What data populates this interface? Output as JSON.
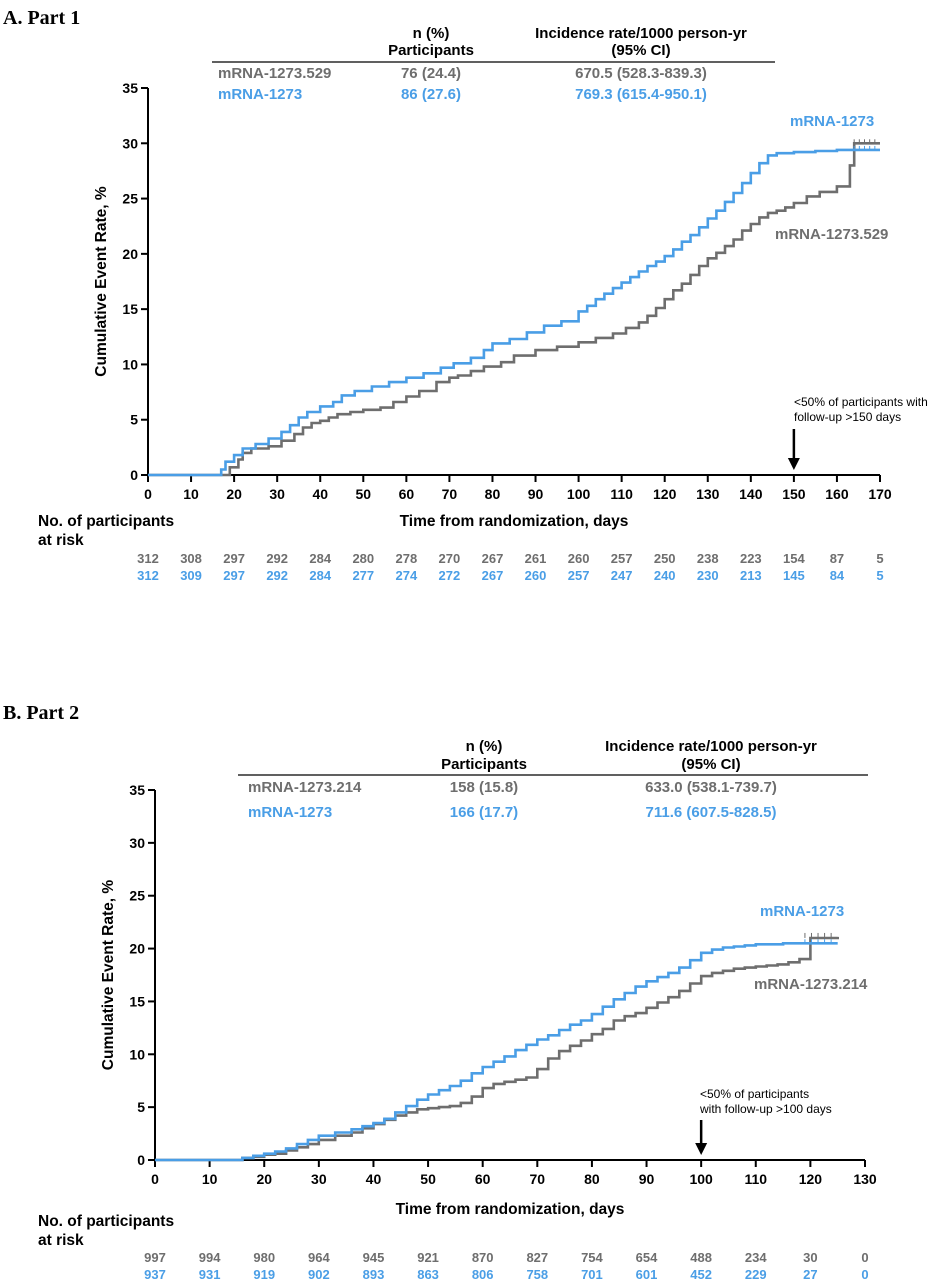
{
  "colors": {
    "gray": "#6e6e6e",
    "blue": "#4a9ee6",
    "axis": "#000000"
  },
  "chart_data": [
    {
      "type": "line",
      "panel_title": "A. Part 1",
      "xlabel": "Time from randomization, days",
      "ylabel": "Cumulative Event Rate, %",
      "xlim": [
        0,
        170
      ],
      "ylim": [
        0,
        35
      ],
      "x_ticks": [
        "0",
        "10",
        "20",
        "30",
        "40",
        "50",
        "60",
        "70",
        "80",
        "90",
        "100",
        "110",
        "120",
        "130",
        "140",
        "150",
        "160",
        "170"
      ],
      "y_ticks": [
        "0",
        "5",
        "10",
        "15",
        "20",
        "25",
        "30",
        "35"
      ],
      "table": {
        "header_n_line1": "n (%)",
        "header_n_line2": "Participants",
        "header_ir_line1": "Incidence rate/1000 person-yr",
        "header_ir_line2": "(95% CI)",
        "rows": [
          {
            "name": "mRNA-1273.529",
            "n": "76 (24.4)",
            "ir": "670.5 (528.3-839.3)",
            "color": "#6e6e6e"
          },
          {
            "name": "mRNA-1273",
            "n": "86 (27.6)",
            "ir": "769.3 (615.4-950.1)",
            "color": "#4a9ee6"
          }
        ]
      },
      "annotation": {
        "line1": "<50% of participants with",
        "line2": "follow-up >150 days",
        "x": 150
      },
      "series": [
        {
          "name": "mRNA-1273.529",
          "color": "#6e6e6e",
          "end_label": "mRNA-1273.529",
          "x": [
            0,
            18,
            19,
            21,
            22,
            24,
            28,
            31,
            34,
            36,
            38,
            40,
            42,
            44,
            47,
            50,
            54,
            57,
            60,
            63,
            67,
            70,
            72,
            75,
            78,
            82,
            85,
            90,
            95,
            100,
            104,
            108,
            111,
            114,
            116,
            118,
            120,
            122,
            124,
            126,
            128,
            130,
            132,
            134,
            136,
            138,
            140,
            142,
            144,
            146,
            148,
            150,
            153,
            156,
            160,
            163,
            164,
            170
          ],
          "y": [
            0,
            0,
            0.7,
            1.4,
            2.0,
            2.4,
            2.6,
            3.1,
            3.7,
            4.3,
            4.7,
            4.9,
            5.2,
            5.5,
            5.7,
            5.9,
            6.1,
            6.6,
            7.1,
            7.6,
            8.4,
            8.8,
            9.0,
            9.4,
            9.8,
            10.2,
            10.8,
            11.3,
            11.6,
            12.0,
            12.4,
            12.8,
            13.3,
            13.8,
            14.4,
            15.1,
            15.9,
            16.7,
            17.3,
            18.1,
            18.9,
            19.6,
            20.1,
            20.7,
            21.3,
            22.1,
            22.7,
            23.3,
            23.7,
            23.9,
            24.2,
            24.6,
            25.2,
            25.6,
            26.1,
            28.0,
            30.0,
            30.0
          ]
        },
        {
          "name": "mRNA-1273",
          "color": "#4a9ee6",
          "end_label": "mRNA-1273",
          "x": [
            0,
            16,
            17,
            18,
            20,
            22,
            25,
            28,
            31,
            33,
            35,
            37,
            40,
            43,
            45,
            48,
            52,
            56,
            60,
            64,
            68,
            71,
            75,
            78,
            80,
            84,
            88,
            92,
            96,
            100,
            102,
            104,
            106,
            108,
            110,
            112,
            114,
            116,
            118,
            120,
            122,
            124,
            126,
            128,
            130,
            132,
            134,
            136,
            138,
            140,
            142,
            144,
            146,
            150,
            155,
            160,
            170
          ],
          "y": [
            0,
            0,
            0.5,
            1.2,
            1.8,
            2.4,
            2.8,
            3.3,
            3.9,
            4.5,
            5.2,
            5.7,
            6.2,
            6.6,
            7.2,
            7.6,
            8.0,
            8.4,
            8.8,
            9.2,
            9.7,
            10.1,
            10.6,
            11.3,
            11.9,
            12.3,
            12.9,
            13.5,
            13.9,
            14.8,
            15.3,
            15.9,
            16.4,
            16.9,
            17.4,
            17.9,
            18.4,
            18.9,
            19.3,
            19.8,
            20.4,
            21.1,
            21.7,
            22.4,
            23.2,
            23.9,
            24.7,
            25.5,
            26.4,
            27.3,
            28.2,
            28.9,
            29.1,
            29.2,
            29.3,
            29.4,
            29.4
          ]
        }
      ],
      "at_risk": {
        "label_line1": "No. of participants",
        "label_line2": "at risk",
        "days": [
          0,
          10,
          20,
          30,
          40,
          50,
          60,
          70,
          80,
          90,
          100,
          110,
          120,
          130,
          140,
          150,
          160,
          170
        ],
        "rows": [
          {
            "color": "#6e6e6e",
            "values": [
              "312",
              "308",
              "297",
              "292",
              "284",
              "280",
              "278",
              "270",
              "267",
              "261",
              "260",
              "257",
              "250",
              "238",
              "223",
              "154",
              "87",
              "5"
            ]
          },
          {
            "color": "#4a9ee6",
            "values": [
              "312",
              "309",
              "297",
              "292",
              "284",
              "277",
              "274",
              "272",
              "267",
              "260",
              "257",
              "247",
              "240",
              "230",
              "213",
              "145",
              "84",
              "5"
            ]
          }
        ]
      }
    },
    {
      "type": "line",
      "panel_title": "B. Part 2",
      "xlabel": "Time from randomization, days",
      "ylabel": "Cumulative Event Rate, %",
      "xlim": [
        0,
        130
      ],
      "ylim": [
        0,
        35
      ],
      "x_ticks": [
        "0",
        "10",
        "20",
        "30",
        "40",
        "50",
        "60",
        "70",
        "80",
        "90",
        "100",
        "110",
        "120",
        "130"
      ],
      "y_ticks": [
        "0",
        "5",
        "10",
        "15",
        "20",
        "25",
        "30",
        "35"
      ],
      "table": {
        "header_n_line1": "n (%)",
        "header_n_line2": "Participants",
        "header_ir_line1": "Incidence rate/1000 person-yr",
        "header_ir_line2": "(95% CI)",
        "rows": [
          {
            "name": "mRNA-1273.214",
            "n": "158 (15.8)",
            "ir": "633.0 (538.1-739.7)",
            "color": "#6e6e6e"
          },
          {
            "name": "mRNA-1273",
            "n": "166 (17.7)",
            "ir": "711.6 (607.5-828.5)",
            "color": "#4a9ee6"
          }
        ]
      },
      "annotation": {
        "line1": "<50% of participants",
        "line2": "with follow-up >100 days",
        "x": 100
      },
      "series": [
        {
          "name": "mRNA-1273.214",
          "color": "#6e6e6e",
          "end_label": "mRNA-1273.214",
          "x": [
            0,
            14,
            16,
            18,
            20,
            22,
            24,
            26,
            28,
            30,
            33,
            36,
            38,
            40,
            42,
            44,
            46,
            48,
            50,
            52,
            54,
            56,
            58,
            60,
            62,
            64,
            66,
            68,
            70,
            72,
            74,
            76,
            78,
            80,
            82,
            84,
            86,
            88,
            90,
            92,
            94,
            96,
            98,
            100,
            102,
            104,
            106,
            108,
            110,
            112,
            114,
            116,
            118,
            120,
            125
          ],
          "y": [
            0,
            0,
            0.2,
            0.3,
            0.5,
            0.6,
            0.9,
            1.2,
            1.5,
            1.9,
            2.3,
            2.6,
            3.0,
            3.4,
            3.8,
            4.2,
            4.5,
            4.8,
            4.9,
            5.0,
            5.1,
            5.4,
            6.0,
            6.8,
            7.2,
            7.4,
            7.6,
            7.8,
            8.6,
            9.6,
            10.3,
            10.8,
            11.3,
            11.9,
            12.4,
            13.2,
            13.6,
            13.9,
            14.4,
            14.9,
            15.4,
            16.0,
            16.7,
            17.4,
            17.7,
            17.9,
            18.1,
            18.2,
            18.3,
            18.4,
            18.5,
            18.7,
            19.0,
            21.0,
            21.1
          ]
        },
        {
          "name": "mRNA-1273",
          "color": "#4a9ee6",
          "end_label": "mRNA-1273",
          "x": [
            0,
            14,
            16,
            18,
            20,
            22,
            24,
            26,
            28,
            30,
            33,
            36,
            38,
            40,
            42,
            44,
            46,
            48,
            50,
            52,
            54,
            56,
            58,
            60,
            62,
            64,
            66,
            68,
            70,
            72,
            74,
            76,
            78,
            80,
            82,
            84,
            86,
            88,
            90,
            92,
            94,
            96,
            98,
            100,
            102,
            104,
            106,
            108,
            110,
            115,
            120,
            125
          ],
          "y": [
            0,
            0,
            0.2,
            0.4,
            0.6,
            0.8,
            1.1,
            1.5,
            1.9,
            2.3,
            2.6,
            2.9,
            3.2,
            3.5,
            3.9,
            4.5,
            5.1,
            5.7,
            6.2,
            6.6,
            7.0,
            7.5,
            8.2,
            8.8,
            9.3,
            9.8,
            10.4,
            10.9,
            11.4,
            11.8,
            12.3,
            12.8,
            13.2,
            13.8,
            14.5,
            15.2,
            15.8,
            16.4,
            16.9,
            17.3,
            17.7,
            18.2,
            18.9,
            19.6,
            19.9,
            20.1,
            20.2,
            20.3,
            20.4,
            20.5,
            20.5,
            20.5
          ]
        }
      ],
      "at_risk": {
        "label_line1": "No. of participants",
        "label_line2": "at risk",
        "days": [
          0,
          10,
          20,
          30,
          40,
          50,
          60,
          70,
          80,
          90,
          100,
          110,
          120,
          130
        ],
        "rows": [
          {
            "color": "#6e6e6e",
            "values": [
              "997",
              "994",
              "980",
              "964",
              "945",
              "921",
              "870",
              "827",
              "754",
              "654",
              "488",
              "234",
              "30",
              "0"
            ]
          },
          {
            "color": "#4a9ee6",
            "values": [
              "937",
              "931",
              "919",
              "902",
              "893",
              "863",
              "806",
              "758",
              "701",
              "601",
              "452",
              "229",
              "27",
              "0"
            ]
          }
        ]
      }
    }
  ]
}
